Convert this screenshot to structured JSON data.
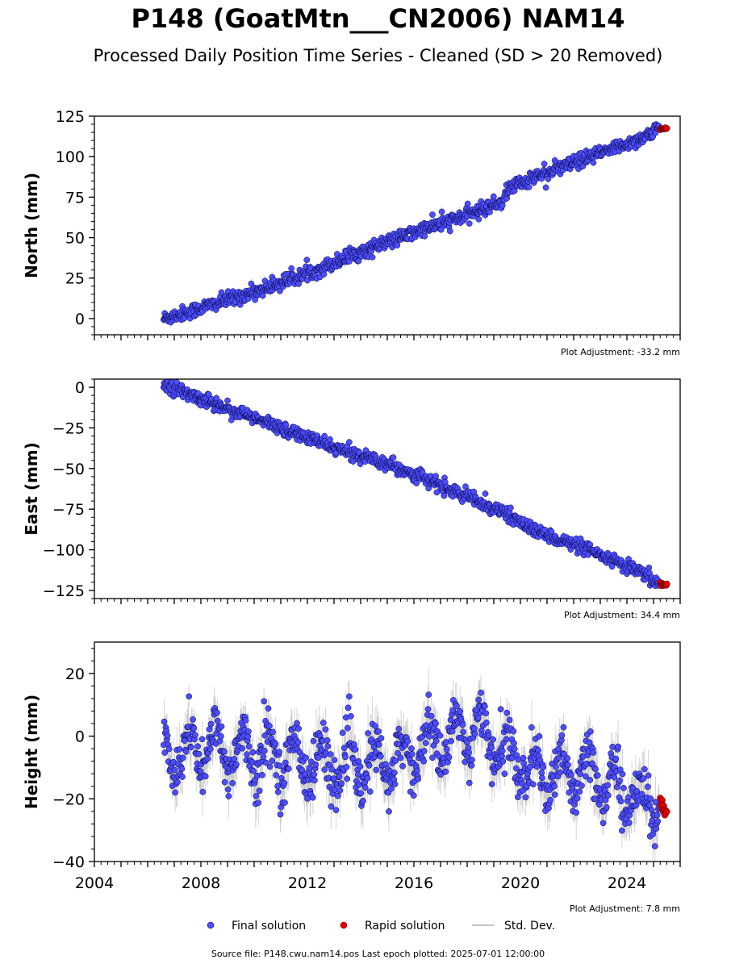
{
  "title": "P148 (GoatMtn___CN2006) NAM14",
  "subtitle": "Processed Daily Position Time Series - Cleaned (SD > 20 Removed)",
  "colors": {
    "final": "#4d4dff",
    "rapid": "#e00000",
    "stddev": "#b0b0b0",
    "axis": "#000000"
  },
  "legend": {
    "final": "Final solution",
    "rapid": "Rapid solution",
    "stddev": "Std. Dev."
  },
  "source": "Source file: P148.cwu.nam14.pos  Last epoch plotted: 2025-07-01 12:00:00",
  "chart_data": [
    {
      "type": "scatter",
      "ylabel": "North (mm)",
      "adjustment": "Plot Adjustment: -33.2 mm",
      "xlim": [
        2004.0,
        2026.0
      ],
      "ylim": [
        -10,
        125
      ],
      "yticks": [
        0,
        25,
        50,
        75,
        100,
        125
      ],
      "ytick_labels": [
        "0",
        "25",
        "50",
        "75",
        "100",
        "125"
      ],
      "grid": false,
      "final_series": {
        "name": "Final solution",
        "x": [
          2006.6,
          2007.5,
          2008.5,
          2009.5,
          2010.5,
          2011.5,
          2012.5,
          2013.5,
          2014.5,
          2015.5,
          2016.5,
          2017.5,
          2018.5,
          2019.3,
          2019.6,
          2020.5,
          2021.5,
          2022.5,
          2023.5,
          2024.5,
          2025.2
        ],
        "y": [
          0,
          4,
          9,
          14,
          19,
          25,
          31,
          38,
          44,
          50,
          56,
          61,
          67,
          72,
          81,
          87,
          93,
          99,
          105,
          111,
          117
        ],
        "noise": 2.2
      },
      "rapid_series": {
        "name": "Rapid solution",
        "x": [
          2025.25,
          2025.5
        ],
        "y": [
          117,
          118
        ]
      }
    },
    {
      "type": "scatter",
      "ylabel": "East (mm)",
      "adjustment": "Plot Adjustment: 34.4 mm",
      "xlim": [
        2004.0,
        2026.0
      ],
      "ylim": [
        -130,
        5
      ],
      "yticks": [
        -125,
        -100,
        -75,
        -50,
        -25,
        0
      ],
      "ytick_labels": [
        "−125",
        "−100",
        "−75",
        "−50",
        "−25",
        "0"
      ],
      "grid": false,
      "final_series": {
        "name": "Final solution",
        "x": [
          2006.6,
          2007.5,
          2008.5,
          2009.5,
          2010.5,
          2011.5,
          2012.5,
          2013.5,
          2014.5,
          2015.5,
          2016.5,
          2017.5,
          2018.5,
          2019.5,
          2020.5,
          2021.5,
          2022.5,
          2023.5,
          2024.5,
          2025.2
        ],
        "y": [
          2,
          -4,
          -10,
          -16,
          -22,
          -28,
          -34,
          -40,
          -44,
          -50,
          -57,
          -64,
          -71,
          -78,
          -88,
          -94,
          -100,
          -107,
          -114,
          -121
        ],
        "noise": 2.0
      },
      "rapid_series": {
        "name": "Rapid solution",
        "x": [
          2025.25,
          2025.5
        ],
        "y": [
          -121,
          -122
        ]
      }
    },
    {
      "type": "scatter",
      "ylabel": "Height (mm)",
      "adjustment": "Plot Adjustment: 7.8 mm",
      "xlim": [
        2004.0,
        2026.0
      ],
      "ylim": [
        -40,
        30
      ],
      "yticks": [
        -40,
        -20,
        0,
        20
      ],
      "ytick_labels": [
        "−40",
        "−20",
        "0",
        "20"
      ],
      "xticks": [
        2004,
        2008,
        2012,
        2016,
        2020,
        2024
      ],
      "xtick_labels": [
        "2004",
        "2008",
        "2012",
        "2016",
        "2020",
        "2024"
      ],
      "grid": false,
      "final_series": {
        "name": "Final solution",
        "x": [
          2006.6,
          2008.0,
          2010.0,
          2012.0,
          2014.0,
          2015.5,
          2016.5,
          2017.5,
          2018.5,
          2019.5,
          2020.5,
          2021.5,
          2022.5,
          2023.5,
          2024.5,
          2025.2
        ],
        "y": [
          -5,
          -4,
          -5,
          -8,
          -10,
          -8,
          -3,
          0,
          2,
          -6,
          -12,
          -13,
          -12,
          -16,
          -20,
          -22
        ],
        "seasonal_amplitude": 7,
        "noise": 4
      },
      "rapid_series": {
        "name": "Rapid solution",
        "x": [
          2025.25,
          2025.5
        ],
        "y": [
          -21,
          -24
        ]
      }
    }
  ]
}
